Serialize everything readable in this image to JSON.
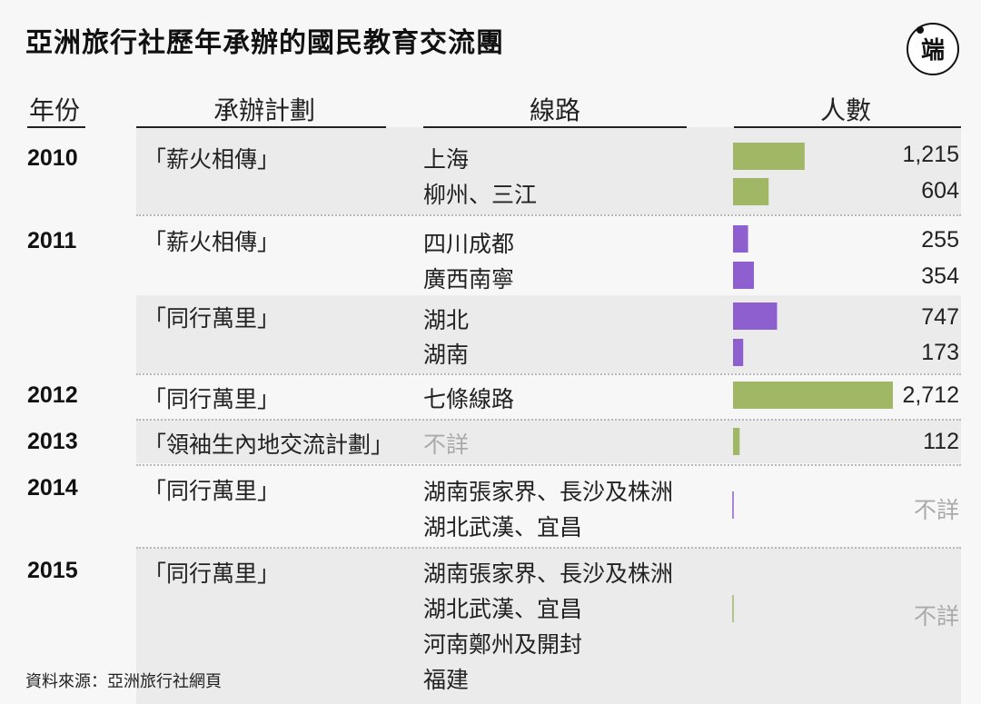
{
  "title": "亞洲旅行社歷年承辦的國民教育交流團",
  "source": "資料來源：亞洲旅行社網頁",
  "headers": {
    "year": "年份",
    "plan": "承辦計劃",
    "route": "線路",
    "people": "人數"
  },
  "logo_glyph": "端",
  "colors": {
    "green": "#a0b866",
    "purple": "#8e5fcf",
    "na_text": "#aaaaaa",
    "shade": "#ebebeb"
  },
  "rows": [
    {
      "year": "2010",
      "plan": "「薪火相傳」",
      "route": "上海",
      "people": 1215,
      "people_label": "1,215",
      "color": "green"
    },
    {
      "year": "",
      "plan": "",
      "route": "柳州、三江",
      "people": 604,
      "people_label": "604",
      "color": "green"
    },
    {
      "year": "2011",
      "plan": "「薪火相傳」",
      "route": "四川成都",
      "people": 255,
      "people_label": "255",
      "color": "purple"
    },
    {
      "year": "",
      "plan": "",
      "route": "廣西南寧",
      "people": 354,
      "people_label": "354",
      "color": "purple"
    },
    {
      "year": "",
      "plan": "「同行萬里」",
      "route": "湖北",
      "people": 747,
      "people_label": "747",
      "color": "purple"
    },
    {
      "year": "",
      "plan": "",
      "route": "湖南",
      "people": 173,
      "people_label": "173",
      "color": "purple"
    },
    {
      "year": "2012",
      "plan": "「同行萬里」",
      "route": "七條線路",
      "people": 2712,
      "people_label": "2,712",
      "color": "green"
    },
    {
      "year": "2013",
      "plan": "「領袖生內地交流計劃」",
      "route": "不詳",
      "people": 112,
      "people_label": "112",
      "color": "green"
    },
    {
      "year": "2014",
      "plan": "「同行萬里」",
      "route": "湖南張家界、長沙及株洲",
      "route2": "湖北武漢、宜昌",
      "people": null,
      "people_label": "不詳",
      "color": "purple"
    },
    {
      "year": "2015",
      "plan": "「同行萬里」",
      "route": "湖南張家界、長沙及株洲",
      "route2": "湖北武漢、宜昌",
      "route3": "河南鄭州及開封",
      "route4": "福建",
      "people": null,
      "people_label": "不詳",
      "color": "green"
    }
  ],
  "chart_data": {
    "type": "bar",
    "orientation": "horizontal",
    "categories": [
      "2010 上海",
      "2010 柳州、三江",
      "2011 四川成都",
      "2011 廣西南寧",
      "2011 湖北",
      "2011 湖南",
      "2012 七條線路",
      "2013 不詳",
      "2014 湖南張家界、長沙及株洲／湖北武漢、宜昌",
      "2015 湖南張家界、長沙及株洲／湖北武漢、宜昌／河南鄭州及開封／福建"
    ],
    "values": [
      1215,
      604,
      255,
      354,
      747,
      173,
      2712,
      112,
      null,
      null
    ],
    "title": "亞洲旅行社歷年承辦的國民教育交流團",
    "xlabel": "人數",
    "xlim": [
      0,
      2712
    ]
  }
}
